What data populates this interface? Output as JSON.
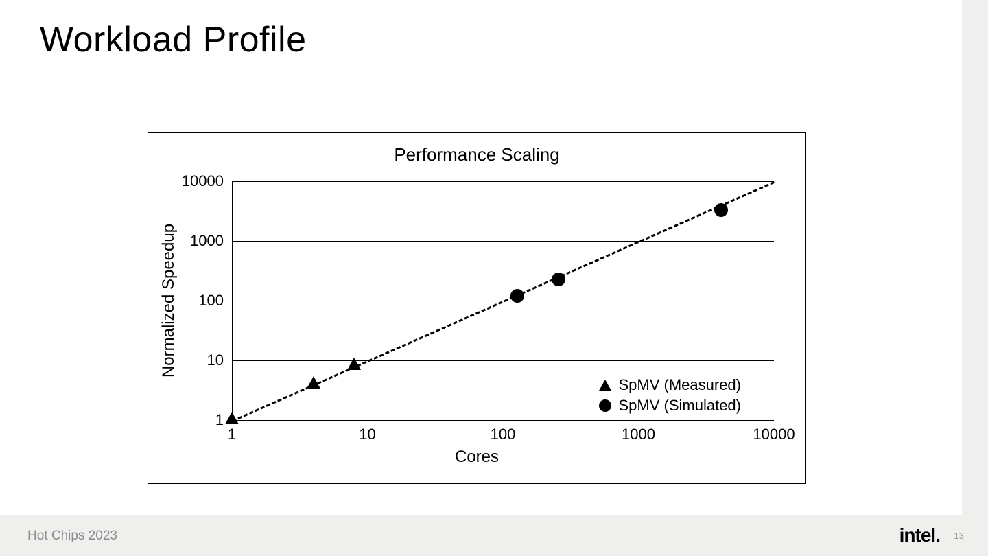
{
  "slide": {
    "title": "Workload Profile",
    "footer_left": "Hot Chips 2023",
    "footer_logo": "intel.",
    "page_number": "13",
    "bg_color": "#ffffff",
    "footer_bg": "#efefed"
  },
  "chart": {
    "type": "scatter",
    "title": "Performance Scaling",
    "title_fontsize": 26,
    "xlabel": "Cores",
    "ylabel": "Normalized Speedup",
    "label_fontsize": 24,
    "tick_fontsize": 22,
    "xscale": "log",
    "yscale": "log",
    "xlim": [
      1,
      10000
    ],
    "ylim": [
      1,
      10000
    ],
    "xticks": [
      1,
      10,
      100,
      1000,
      10000
    ],
    "yticks": [
      1,
      10,
      100,
      1000,
      10000
    ],
    "xtick_labels": [
      "1",
      "10",
      "100",
      "1000",
      "10000"
    ],
    "ytick_labels": [
      "1",
      "10",
      "100",
      "1000",
      "10000"
    ],
    "grid_axis": "y",
    "grid_color": "#000000",
    "background_color": "#ffffff",
    "border_color": "#000000",
    "trend_line": {
      "style": "dashed",
      "width": 3,
      "color": "#000000",
      "x": [
        1,
        10000
      ],
      "y": [
        1,
        10000
      ]
    },
    "series": [
      {
        "label": "SpMV (Measured)",
        "marker": "triangle",
        "color": "#000000",
        "marker_size": 20,
        "points": [
          {
            "x": 1,
            "y": 1
          },
          {
            "x": 4,
            "y": 4
          },
          {
            "x": 8,
            "y": 8
          }
        ]
      },
      {
        "label": "SpMV (Simulated)",
        "marker": "circle",
        "color": "#000000",
        "marker_size": 20,
        "points": [
          {
            "x": 128,
            "y": 120
          },
          {
            "x": 256,
            "y": 230
          },
          {
            "x": 4096,
            "y": 3300
          }
        ]
      }
    ],
    "legend": {
      "rows": [
        {
          "marker": "triangle",
          "label": "SpMV (Measured)"
        },
        {
          "marker": "circle",
          "label": "SpMV (Simulated)"
        }
      ]
    }
  }
}
